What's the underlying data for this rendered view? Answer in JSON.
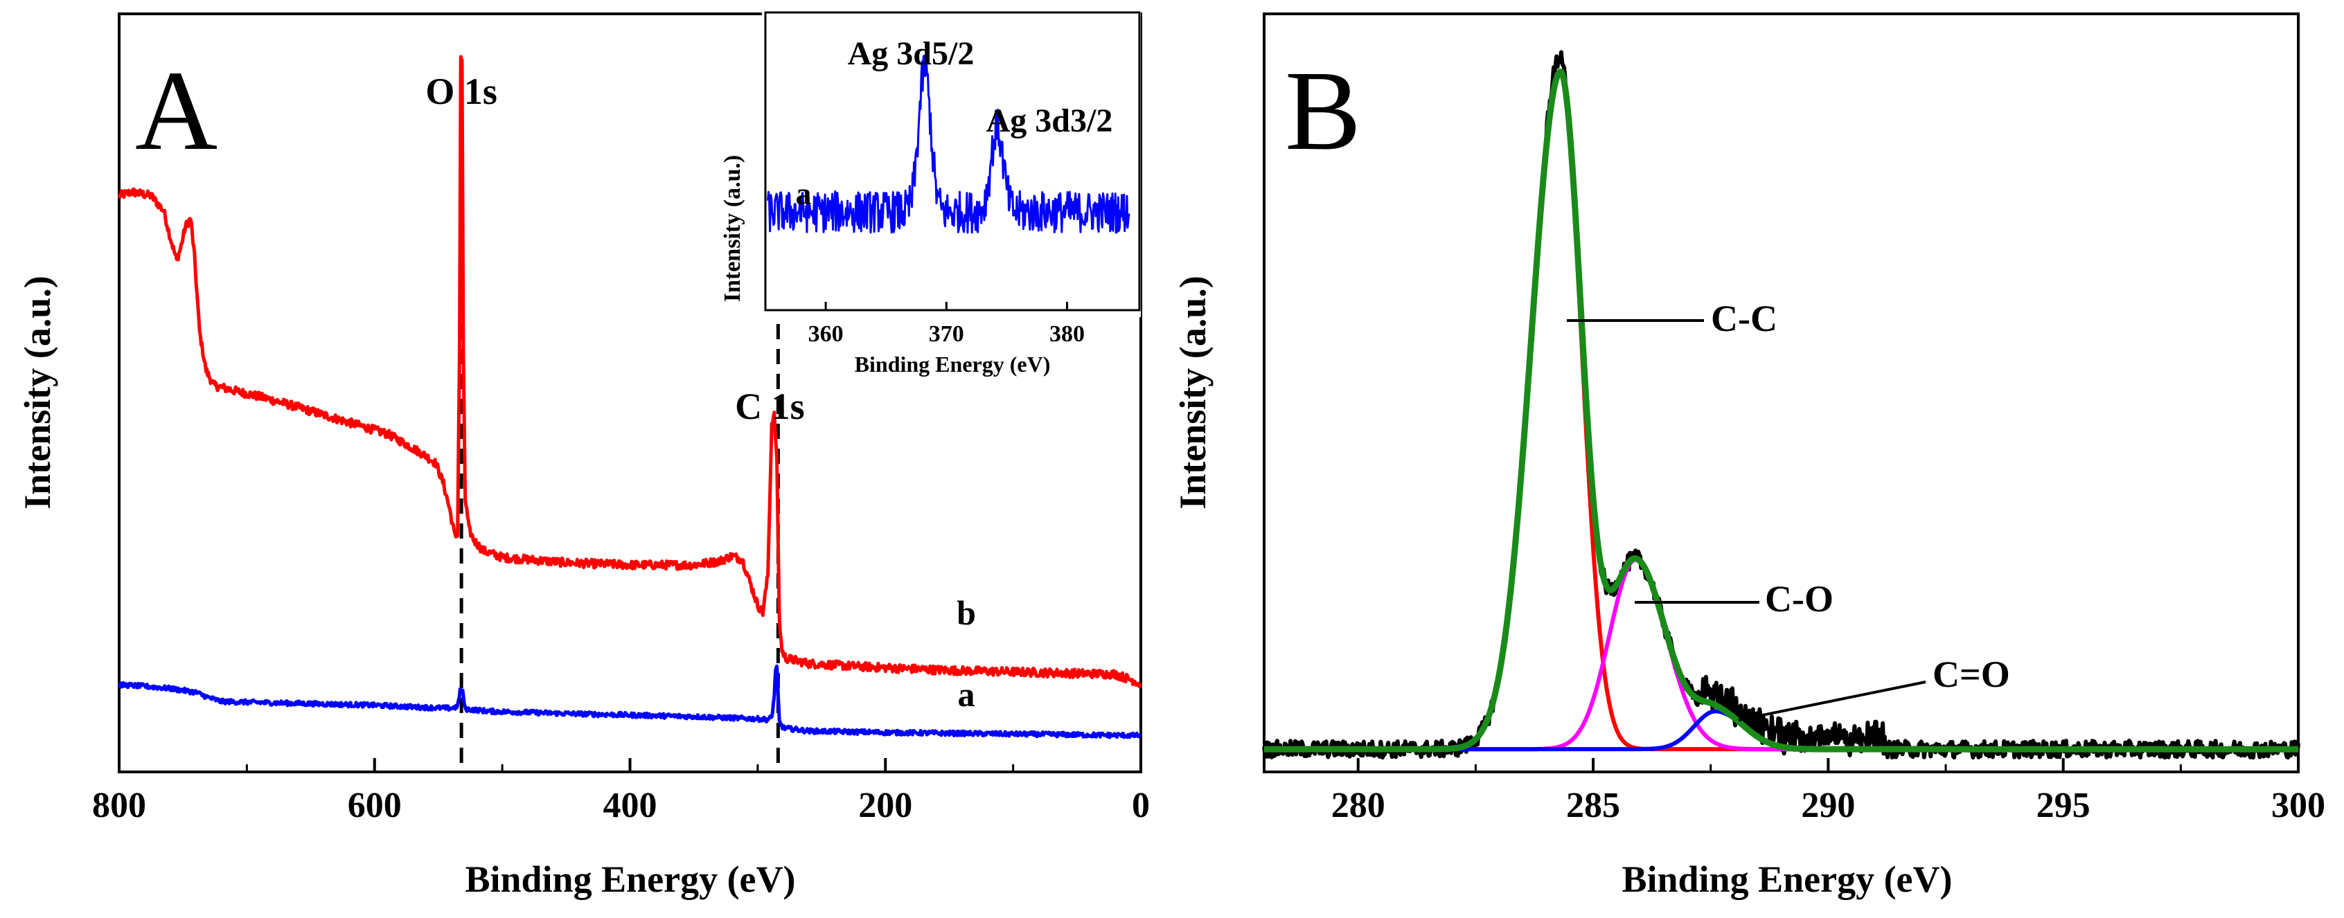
{
  "chart_data": [
    {
      "panel": "A",
      "type": "line",
      "panel_label": "A",
      "title": "",
      "xlabel": "Binding Energy (eV)",
      "ylabel": "Intensity (a.u.)",
      "x_reversed": true,
      "xlim": [
        800,
        0
      ],
      "ylim": [
        0,
        100
      ],
      "xticks": [
        800,
        600,
        400,
        200,
        0
      ],
      "xtick_labels": [
        "800",
        "600",
        "400",
        "200",
        "0"
      ],
      "annotations": [
        {
          "text": "O 1s",
          "x": 532
        },
        {
          "text": "C 1s",
          "x": 284
        }
      ],
      "dashed_lines": [
        532,
        284
      ],
      "series": [
        {
          "name": "b",
          "label": "b",
          "color": "#ff0000",
          "points": [
            [
              800,
              76
            ],
            [
              790,
              76.5
            ],
            [
              775,
              76
            ],
            [
              765,
              74
            ],
            [
              760,
              70.5
            ],
            [
              755,
              67.5
            ],
            [
              752,
              69
            ],
            [
              748,
              72
            ],
            [
              744,
              73
            ],
            [
              741,
              68
            ],
            [
              737,
              58
            ],
            [
              732,
              53
            ],
            [
              726,
              51
            ],
            [
              710,
              50.3
            ],
            [
              690,
              49.5
            ],
            [
              670,
              48.6
            ],
            [
              650,
              47.6
            ],
            [
              630,
              46.6
            ],
            [
              610,
              45.6
            ],
            [
              590,
              44.6
            ],
            [
              575,
              43.2
            ],
            [
              560,
              41.7
            ],
            [
              552,
              40.7
            ],
            [
              546,
              38
            ],
            [
              541,
              34.5
            ],
            [
              537,
              31
            ],
            [
              535,
              31.5
            ],
            [
              533.5,
              55
            ],
            [
              532.5,
              94
            ],
            [
              531.5,
              94
            ],
            [
              530.5,
              55
            ],
            [
              529,
              36
            ],
            [
              526,
              32
            ],
            [
              522,
              30.5
            ],
            [
              515,
              29.2
            ],
            [
              500,
              28.3
            ],
            [
              450,
              27.6
            ],
            [
              400,
              27.3
            ],
            [
              350,
              27.3
            ],
            [
              330,
              27.8
            ],
            [
              320,
              28.5
            ],
            [
              312,
              28
            ],
            [
              306,
              25
            ],
            [
              300,
              22
            ],
            [
              296,
              21
            ],
            [
              292,
              26
            ],
            [
              289,
              46
            ],
            [
              287,
              47
            ],
            [
              285,
              41
            ],
            [
              283,
              20
            ],
            [
              281,
              16
            ],
            [
              278,
              15
            ],
            [
              260,
              14.3
            ],
            [
              220,
              13.9
            ],
            [
              180,
              13.6
            ],
            [
              150,
              13.4
            ],
            [
              100,
              13.2
            ],
            [
              50,
              13
            ],
            [
              20,
              12.9
            ],
            [
              5,
              12
            ],
            [
              0,
              11.5
            ]
          ]
        },
        {
          "name": "a",
          "label": "a",
          "color": "#0000ff",
          "points": [
            [
              800,
              11.5
            ],
            [
              780,
              11.3
            ],
            [
              760,
              11
            ],
            [
              740,
              10.5
            ],
            [
              730,
              9.8
            ],
            [
              720,
              9.3
            ],
            [
              700,
              9.2
            ],
            [
              650,
              9
            ],
            [
              600,
              8.8
            ],
            [
              560,
              8.5
            ],
            [
              540,
              8.4
            ],
            [
              535,
              8.6
            ],
            [
              533,
              10.8
            ],
            [
              531,
              10.5
            ],
            [
              529,
              8.3
            ],
            [
              510,
              8
            ],
            [
              450,
              7.7
            ],
            [
              400,
              7.5
            ],
            [
              350,
              7.3
            ],
            [
              300,
              7
            ],
            [
              292,
              6.9
            ],
            [
              289,
              7.2
            ],
            [
              287,
              10
            ],
            [
              286,
              13.6
            ],
            [
              285,
              13.8
            ],
            [
              284,
              10
            ],
            [
              283,
              6.6
            ],
            [
              280,
              5.8
            ],
            [
              260,
              5.4
            ],
            [
              200,
              5.2
            ],
            [
              150,
              5.1
            ],
            [
              100,
              5
            ],
            [
              50,
              4.9
            ],
            [
              0,
              4.8
            ]
          ]
        }
      ],
      "inset": {
        "type": "line",
        "series_label": "a",
        "color": "#0000ff",
        "xlabel": "Binding Energy (eV)",
        "ylabel": "Intensity (a.u.)",
        "xlim": [
          355,
          386
        ],
        "ylim": [
          0,
          100
        ],
        "xticks": [
          360,
          370,
          380
        ],
        "xtick_labels": [
          "360",
          "370",
          "380"
        ],
        "annotations": [
          {
            "text": "Ag 3d5/2",
            "x": 368.2
          },
          {
            "text": "Ag 3d3/2",
            "x": 374.2
          }
        ],
        "baseline": 33,
        "peaks": [
          {
            "x": 368.2,
            "height": 48,
            "width": 0.5
          },
          {
            "x": 374.2,
            "height": 28,
            "width": 0.5
          }
        ]
      }
    },
    {
      "panel": "B",
      "type": "line",
      "panel_label": "B",
      "title": "",
      "xlabel": "Binding Energy (eV)",
      "ylabel": "Intensity (a.u.)",
      "xlim": [
        278,
        300
      ],
      "ylim": [
        0,
        100
      ],
      "xticks": [
        280,
        285,
        290,
        295,
        300
      ],
      "xtick_labels": [
        "280",
        "285",
        "290",
        "295",
        "300"
      ],
      "annotations": [
        {
          "text": "C-C",
          "x": 284.3
        },
        {
          "text": "C-O",
          "x": 285.9
        },
        {
          "text": "C=O",
          "x": 287.6
        }
      ],
      "baseline": 3,
      "components": [
        {
          "name": "C-C",
          "color": "#ff0000",
          "center": 284.3,
          "height": 89,
          "sigma_left": 0.62,
          "sigma_right": 0.45
        },
        {
          "name": "C-O",
          "color": "#ff00ff",
          "center": 285.9,
          "height": 25,
          "sigma_left": 0.55,
          "sigma_right": 0.65
        },
        {
          "name": "C=O",
          "color": "#0000ff",
          "center": 287.6,
          "height": 5,
          "sigma_left": 0.45,
          "sigma_right": 0.6
        }
      ],
      "series": [
        {
          "name": "experimental",
          "color": "#000000"
        },
        {
          "name": "fit envelope",
          "color": "#1a8a1a"
        }
      ]
    }
  ]
}
